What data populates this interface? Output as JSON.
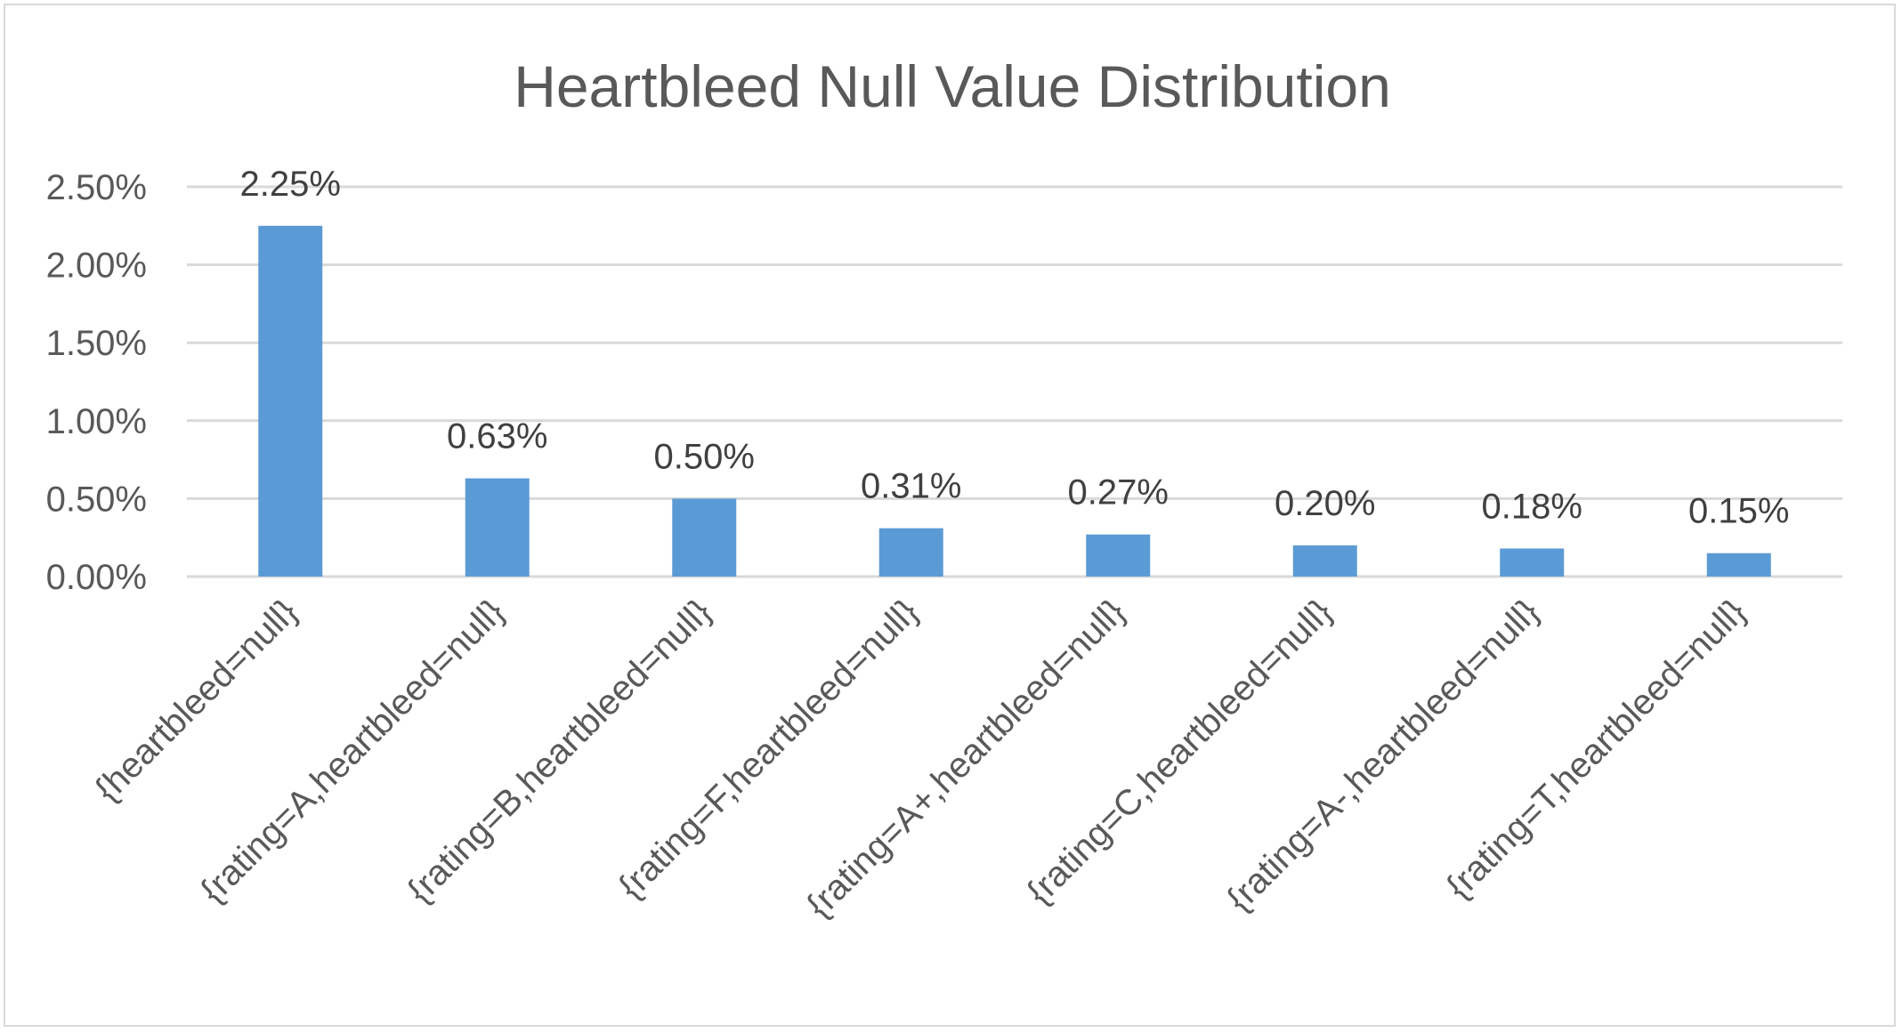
{
  "chart_data": {
    "type": "bar",
    "title": "Heartbleed Null Value Distribution",
    "xlabel": "",
    "ylabel": "",
    "categories": [
      "{heartbleed=null}",
      "{rating=A,heartbleed=null}",
      "{rating=B,heartbleed=null}",
      "{rating=F,heartbleed=null}",
      "{rating=A+,heartbleed=null}",
      "{rating=C,heartbleed=null}",
      "{rating=A-,heartbleed=null}",
      "{rating=T,heartbleed=null}"
    ],
    "values": [
      2.25,
      0.63,
      0.5,
      0.31,
      0.27,
      0.2,
      0.18,
      0.15
    ],
    "data_labels": [
      "2.25%",
      "0.63%",
      "0.50%",
      "0.31%",
      "0.27%",
      "0.20%",
      "0.18%",
      "0.15%"
    ],
    "ylim": [
      0,
      2.5
    ],
    "yticks": [
      0,
      0.5,
      1.0,
      1.5,
      2.0,
      2.5
    ],
    "ytick_labels": [
      "0.00%",
      "0.50%",
      "1.00%",
      "1.50%",
      "2.00%",
      "2.50%"
    ],
    "grid": true,
    "legend": "none",
    "colors": {
      "bar": "#5b9bd5",
      "grid": "#d9d9d9",
      "text": "#595959"
    }
  }
}
